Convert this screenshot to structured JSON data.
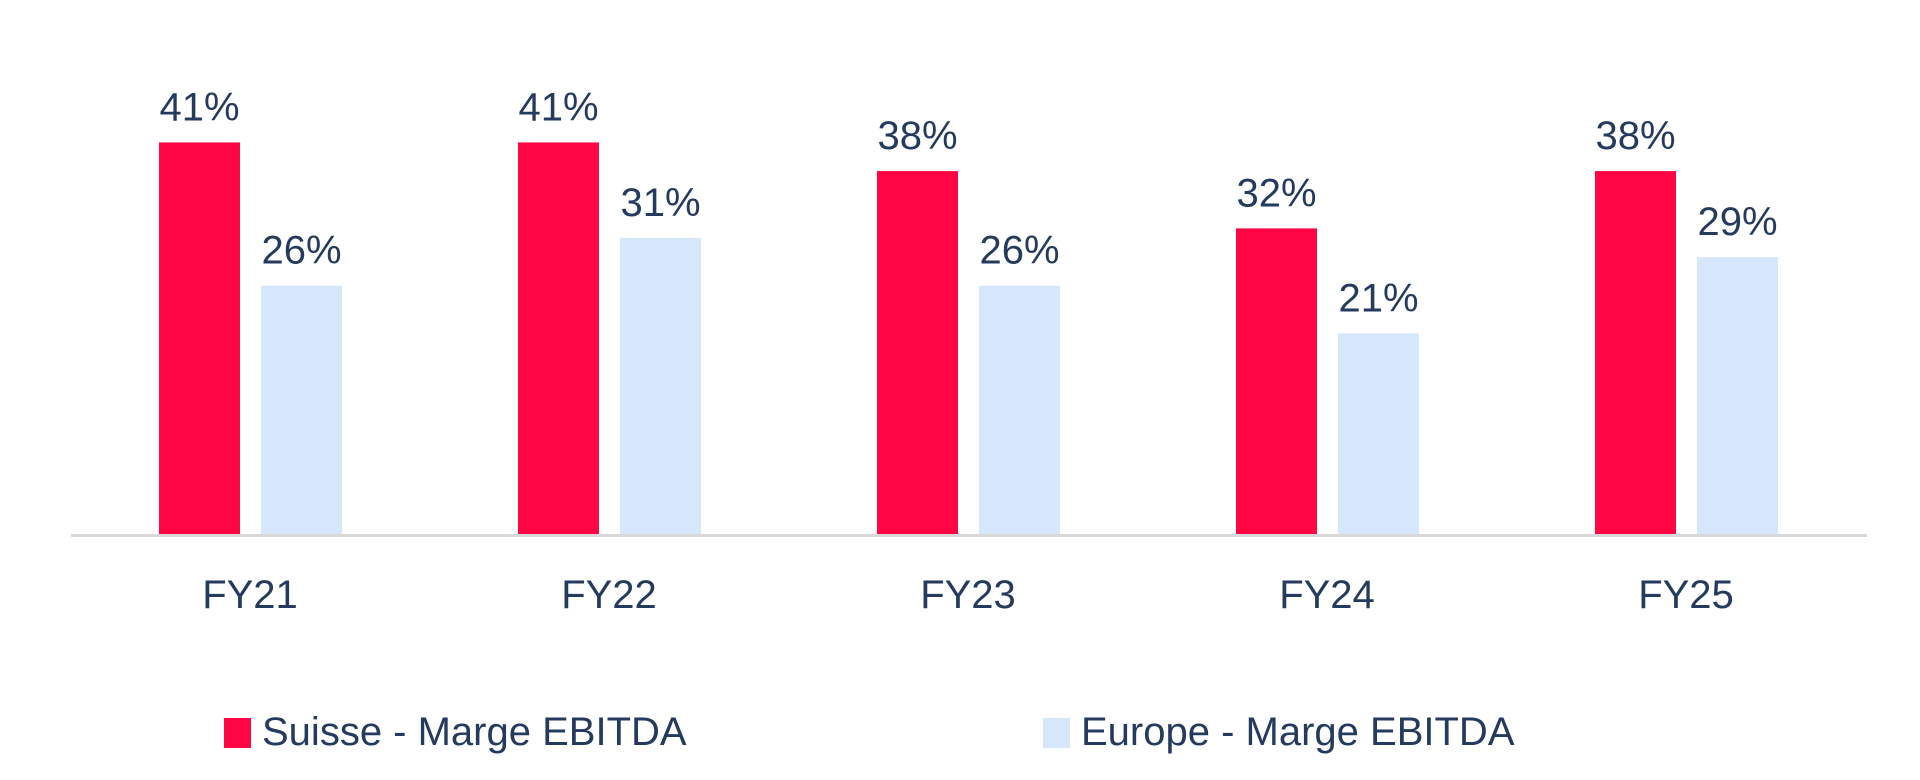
{
  "chart_data": {
    "type": "bar",
    "categories": [
      "FY21",
      "FY22",
      "FY23",
      "FY24",
      "FY25"
    ],
    "series": [
      {
        "name": "Suisse - Marge EBITDA",
        "values": [
          41,
          41,
          38,
          32,
          38
        ],
        "labels": [
          "41%",
          "41%",
          "38%",
          "32%",
          "38%"
        ],
        "color": "#ff0544"
      },
      {
        "name": "Europe - Marge EBITDA",
        "values": [
          26,
          31,
          26,
          21,
          29
        ],
        "labels": [
          "26%",
          "31%",
          "26%",
          "21%",
          "29%"
        ],
        "color": "#d6e6fb"
      }
    ],
    "ylim": [
      0,
      50
    ],
    "grid": false,
    "legend_position": "bottom",
    "text_color": "#243a5e",
    "axis_color": "#d9d9d9"
  }
}
